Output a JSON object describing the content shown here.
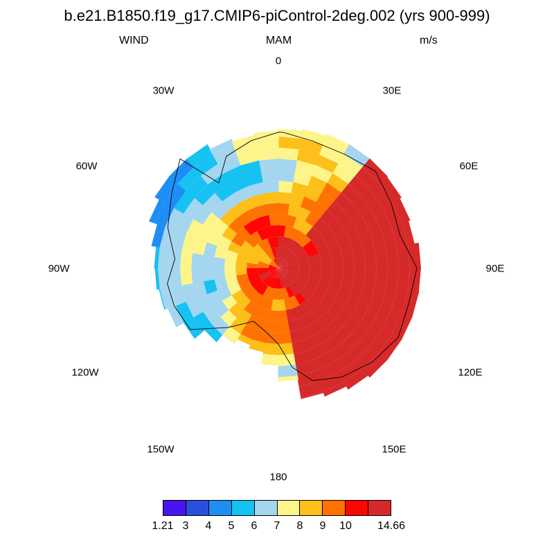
{
  "title": "b.e21.B1850.f19_g17.CMIP6-piControl-2deg.002 (yrs 900-999)",
  "variable": "WIND",
  "season": "MAM",
  "units": "m/s",
  "longitude_labels": [
    "0",
    "30E",
    "60E",
    "90E",
    "120E",
    "150E",
    "180",
    "150W",
    "120W",
    "90W",
    "60W",
    "30W"
  ],
  "colorbar": {
    "colors": [
      "#4a14f0",
      "#2a4ede",
      "#1e8ef5",
      "#16c2f2",
      "#a5d6f0",
      "#fef58a",
      "#fdbf1a",
      "#fe7204",
      "#fe0606",
      "#d62a2a"
    ],
    "labels": [
      "1.21",
      "3",
      "4",
      "5",
      "6",
      "7",
      "8",
      "9",
      "10",
      "14.66"
    ]
  },
  "map": {
    "projection": "south-polar-stereographic",
    "field_colors": {
      "c_dark_red": "#d62a2a",
      "c_red": "#fe0606",
      "c_orange": "#fe7204",
      "c_gold": "#fdbf1a",
      "c_yellow": "#fef58a",
      "c_light_blue": "#a5d6f0",
      "c_cyan": "#16c2f2",
      "c_blue": "#1e8ef5"
    },
    "coastline_color": "#000000"
  }
}
